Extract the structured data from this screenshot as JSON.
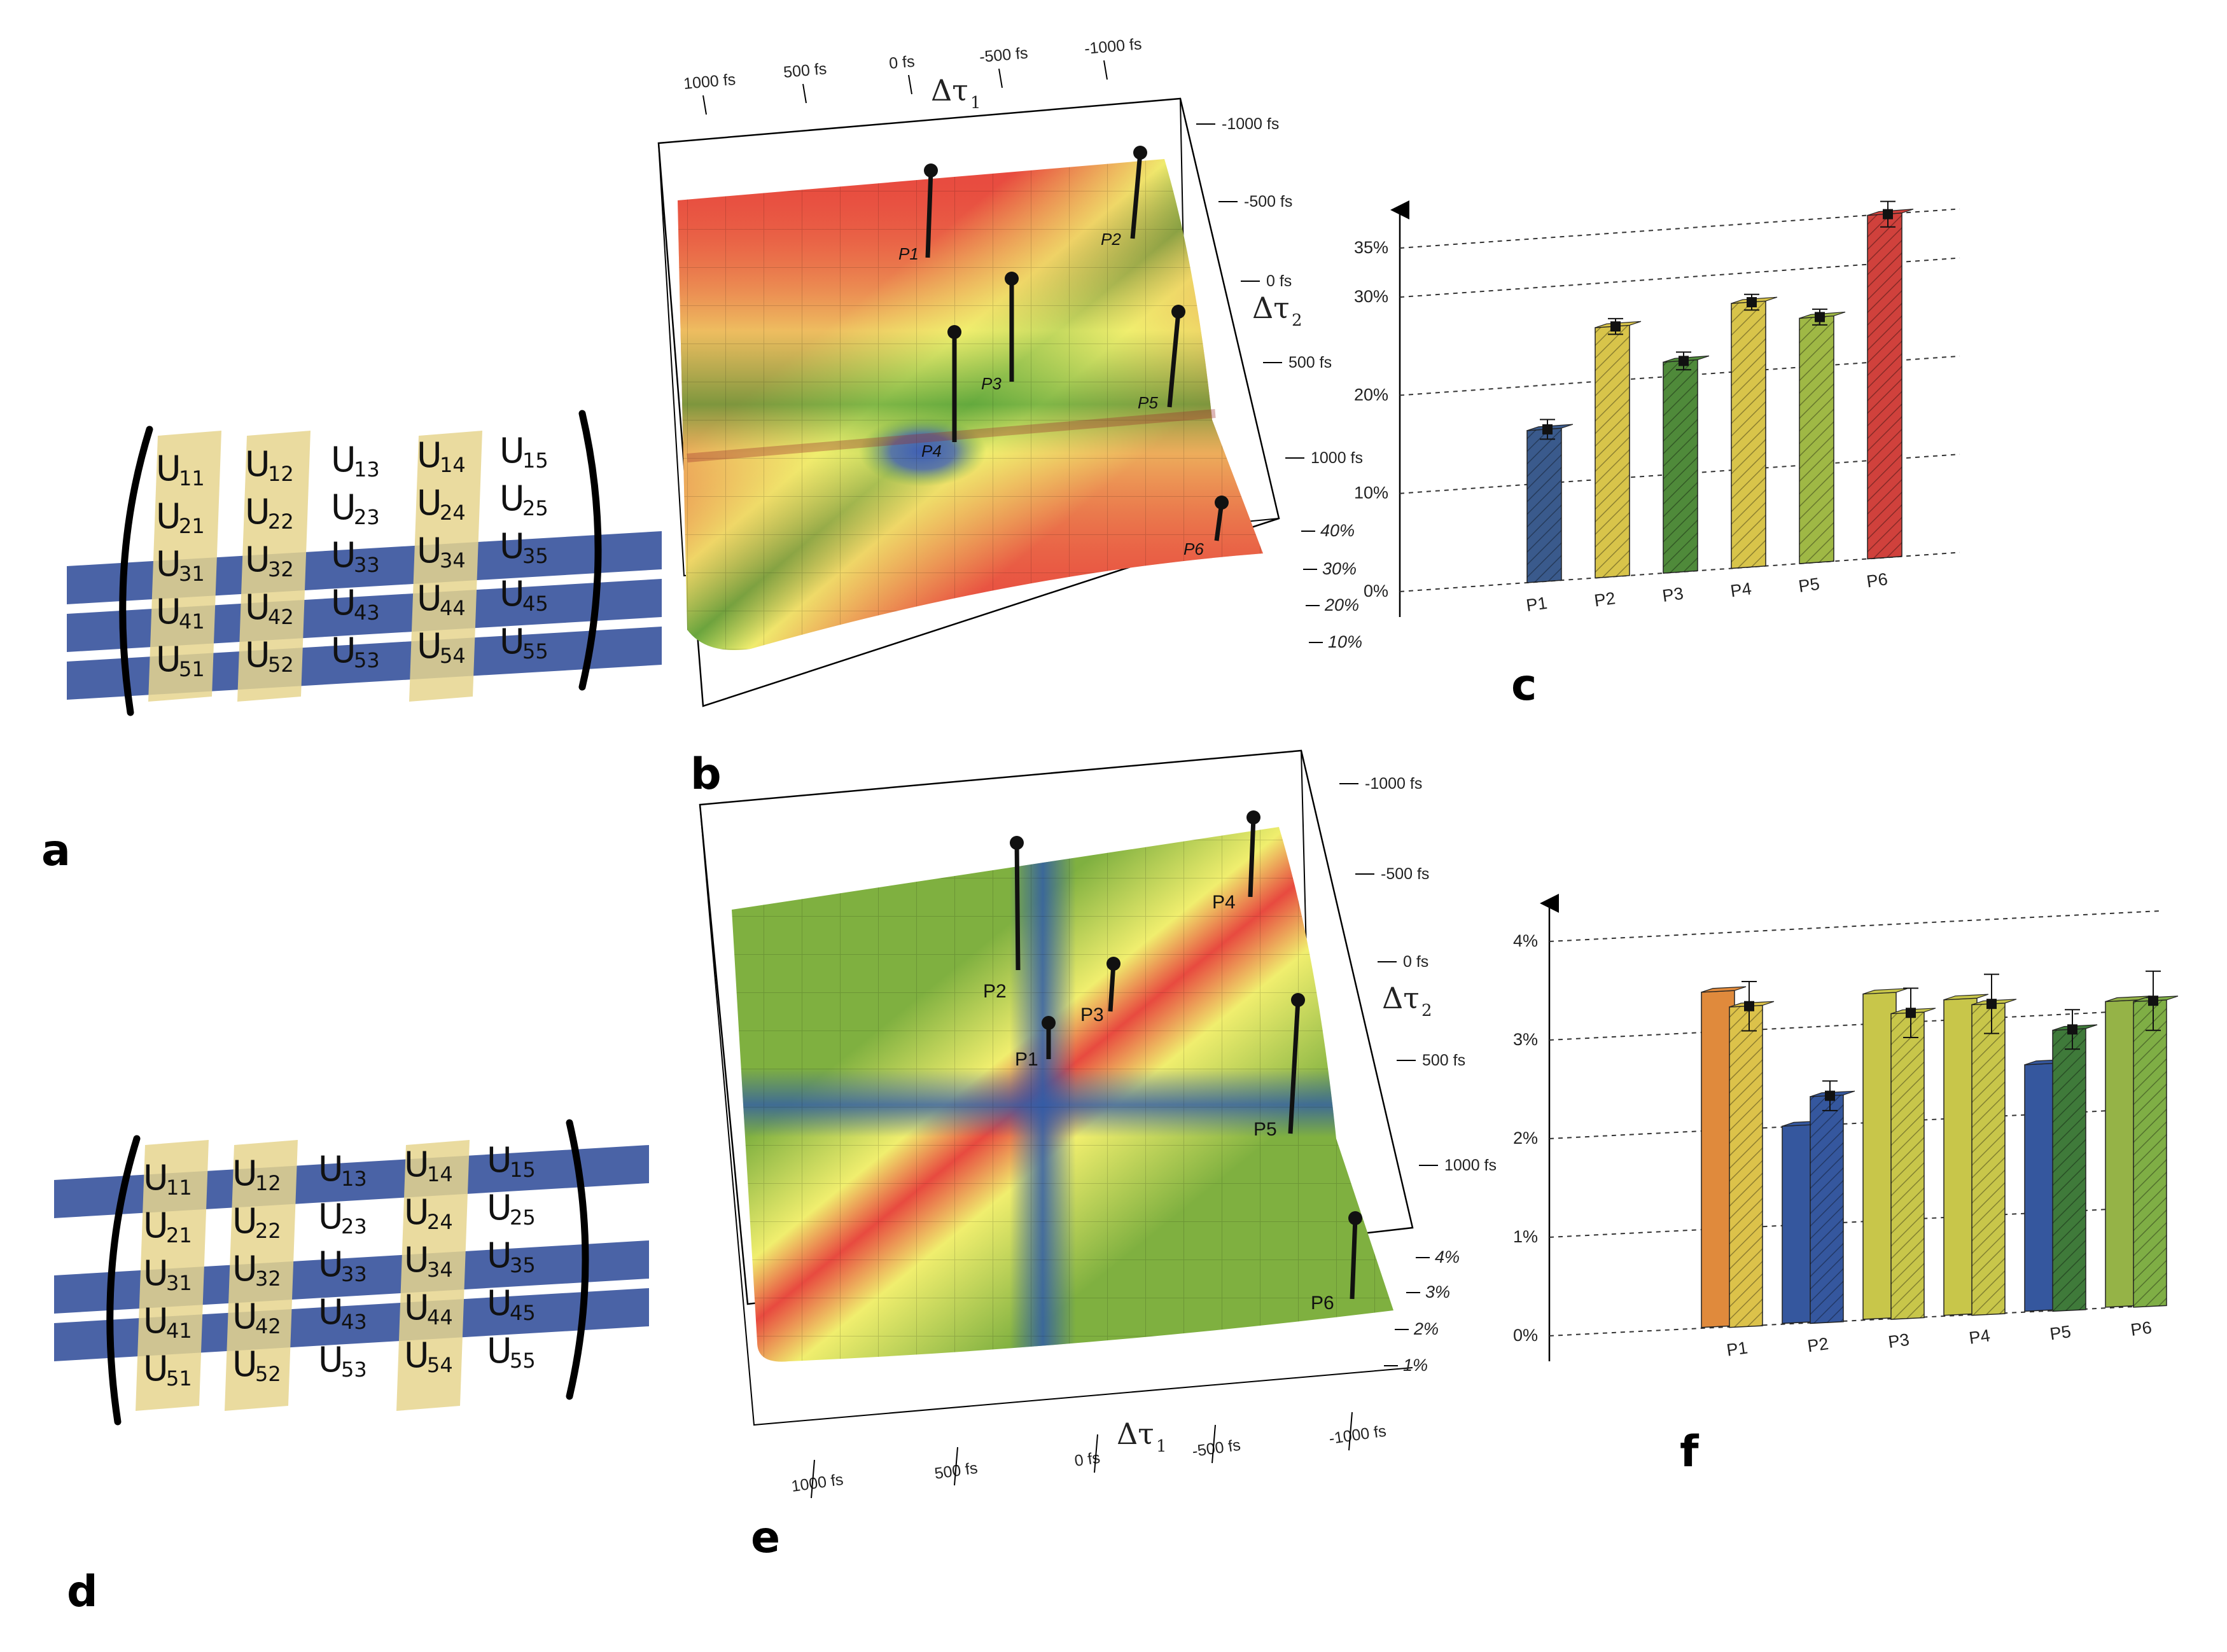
{
  "panels": {
    "a": "a",
    "b": "b",
    "c": "c",
    "d": "d",
    "e": "e",
    "f": "f"
  },
  "matrix_a": {
    "rows": [
      [
        [
          "U",
          "11"
        ],
        [
          "U",
          "12"
        ],
        [
          "U",
          "13"
        ],
        [
          "U",
          "14"
        ],
        [
          "U",
          "15"
        ]
      ],
      [
        [
          "U",
          "21"
        ],
        [
          "U",
          "22"
        ],
        [
          "U",
          "23"
        ],
        [
          "U",
          "24"
        ],
        [
          "U",
          "25"
        ]
      ],
      [
        [
          "U",
          "31"
        ],
        [
          "U",
          "32"
        ],
        [
          "U",
          "33"
        ],
        [
          "U",
          "34"
        ],
        [
          "U",
          "35"
        ]
      ],
      [
        [
          "U",
          "41"
        ],
        [
          "U",
          "42"
        ],
        [
          "U",
          "43"
        ],
        [
          "U",
          "44"
        ],
        [
          "U",
          "45"
        ]
      ],
      [
        [
          "U",
          "51"
        ],
        [
          "U",
          "52"
        ],
        [
          "U",
          "53"
        ],
        [
          "U",
          "54"
        ],
        [
          "U",
          "55"
        ]
      ]
    ],
    "highlighted_columns": [
      1,
      2,
      4
    ],
    "highlighted_rows": [
      3,
      4,
      5
    ],
    "column_color": "#e6d58e",
    "row_color": "#4a63a6"
  },
  "matrix_d": {
    "rows": [
      [
        [
          "U",
          "11"
        ],
        [
          "U",
          "12"
        ],
        [
          "U",
          "13"
        ],
        [
          "U",
          "14"
        ],
        [
          "U",
          "15"
        ]
      ],
      [
        [
          "U",
          "21"
        ],
        [
          "U",
          "22"
        ],
        [
          "U",
          "23"
        ],
        [
          "U",
          "24"
        ],
        [
          "U",
          "25"
        ]
      ],
      [
        [
          "U",
          "31"
        ],
        [
          "U",
          "32"
        ],
        [
          "U",
          "33"
        ],
        [
          "U",
          "34"
        ],
        [
          "U",
          "35"
        ]
      ],
      [
        [
          "U",
          "41"
        ],
        [
          "U",
          "42"
        ],
        [
          "U",
          "43"
        ],
        [
          "U",
          "44"
        ],
        [
          "U",
          "45"
        ]
      ],
      [
        [
          "U",
          "51"
        ],
        [
          "U",
          "52"
        ],
        [
          "U",
          "53"
        ],
        [
          "U",
          "54"
        ],
        [
          "U",
          "55"
        ]
      ]
    ],
    "highlighted_columns": [
      1,
      2,
      4
    ],
    "highlighted_rows": [
      1,
      3,
      4
    ],
    "column_color": "#e6d58e",
    "row_color": "#4a63a6"
  },
  "surface_b": {
    "tau1_label": "Δτ",
    "tau1_sub": "1",
    "tau2_label": "Δτ",
    "tau2_sub": "2",
    "tau1_ticks": [
      "1000 fs",
      "500 fs",
      "0 fs",
      "-500 fs",
      "-1000 fs"
    ],
    "tau2_ticks": [
      "-1000 fs",
      "-500 fs",
      "0 fs",
      "500 fs",
      "1000 fs"
    ],
    "z_ticks": [
      "40%",
      "30%",
      "20%",
      "10%"
    ],
    "peaks": [
      "P1",
      "P2",
      "P3",
      "P4",
      "P5",
      "P6"
    ],
    "colors": [
      "#e84a3f",
      "#f0ee6e",
      "#63a93d",
      "#3f5fb6"
    ]
  },
  "surface_e": {
    "tau1_label": "Δτ",
    "tau1_sub": "1",
    "tau2_label": "Δτ",
    "tau2_sub": "2",
    "tau1_ticks": [
      "1000 fs",
      "500 fs",
      "0 fs",
      "-500 fs",
      "-1000 fs"
    ],
    "tau2_ticks": [
      "-1000 fs",
      "-500 fs",
      "0 fs",
      "500 fs",
      "1000 fs"
    ],
    "z_ticks": [
      "4%",
      "3%",
      "2%",
      "1%"
    ],
    "peaks": [
      "P1",
      "P2",
      "P3",
      "P4",
      "P5",
      "P6"
    ],
    "colors": [
      "#7fb040",
      "#2e5e2a",
      "#3f5fb6",
      "#f0ee6e",
      "#e84a3f"
    ]
  },
  "chart_data": [
    {
      "type": "bar",
      "panel": "c",
      "categories": [
        "P1",
        "P2",
        "P3",
        "P4",
        "P5",
        "P6"
      ],
      "y_ticks": [
        "0%",
        "10%",
        "20%",
        "30%",
        "35%"
      ],
      "ylim": [
        0,
        35
      ],
      "series": [
        {
          "values": [
            15.5,
            25.5,
            21.5,
            27,
            25,
            35
          ],
          "colors": [
            "#3a5a8c",
            "#d8c44a",
            "#4f8a3a",
            "#d8c44a",
            "#9fb845",
            "#d0413c"
          ],
          "error": [
            1,
            0.8,
            0.9,
            0.8,
            0.8,
            1.3
          ]
        }
      ]
    },
    {
      "type": "bar",
      "panel": "f",
      "categories": [
        "P1",
        "P2",
        "P3",
        "P4",
        "P5",
        "P6"
      ],
      "y_ticks": [
        "0%",
        "1%",
        "2%",
        "3%",
        "4%"
      ],
      "ylim": [
        0,
        4
      ],
      "series": [
        {
          "name": "",
          "values": [
            3.4,
            2.0,
            3.3,
            3.2,
            2.5,
            3.1
          ],
          "colors": [
            "#e08a3c",
            "#35579e",
            "#c8c64a",
            "#c8c64a",
            "#35579e",
            "#95b347"
          ]
        },
        {
          "name": "",
          "values": [
            3.25,
            2.3,
            3.1,
            3.15,
            2.85,
            3.1
          ],
          "colors": [
            "#dcc24a",
            "#35579e",
            "#c8c64a",
            "#c8c64a",
            "#3f7a3a",
            "#7fae45"
          ],
          "error": [
            0.25,
            0.15,
            0.25,
            0.3,
            0.2,
            0.3
          ]
        }
      ]
    }
  ]
}
